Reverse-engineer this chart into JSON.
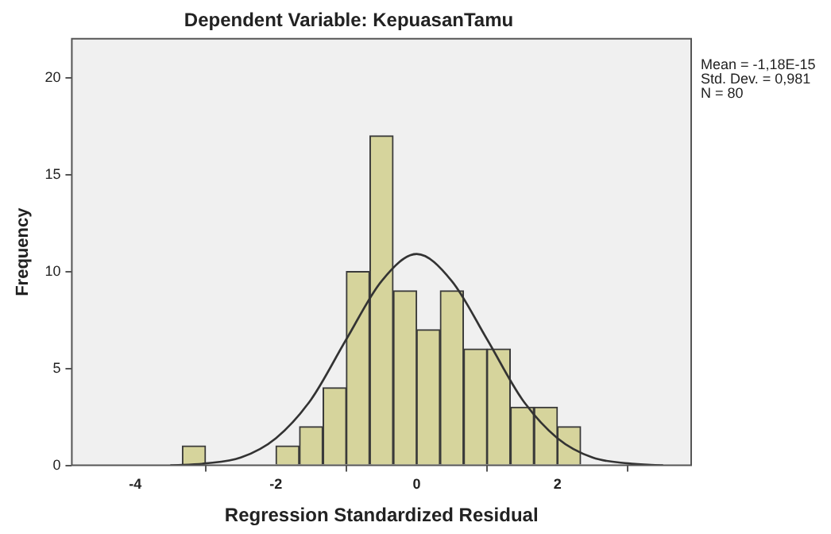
{
  "chart_data": {
    "type": "histogram",
    "title": "Dependent Variable: KepuasanTamu",
    "xlabel": "Regression Standardized Residual",
    "ylabel": "Frequency",
    "bins": [
      -3.33,
      -3,
      -2.67,
      -2.33,
      -2,
      -1.67,
      -1.33,
      -1,
      -0.67,
      -0.33,
      0,
      0.33,
      0.67,
      1,
      1.33,
      1.67,
      2,
      2.33
    ],
    "series": [
      {
        "color": "#d6d49c",
        "values": [
          1,
          0,
          0,
          0,
          1,
          2,
          4,
          10,
          17,
          9,
          7,
          9,
          6,
          6,
          3,
          3,
          2
        ]
      },
      {
        "type": "line",
        "color": "#333333",
        "x": [
          -3.5,
          -3,
          -2.5,
          -2,
          -1.5,
          -1,
          -0.5,
          0,
          0.5,
          1,
          1.5,
          2,
          2.5,
          3,
          3.5
        ],
        "values": [
          0,
          0.1,
          0.4,
          1.4,
          3.4,
          6.5,
          9.5,
          10.9,
          9.5,
          6.5,
          3.4,
          1.4,
          0.4,
          0.1,
          0
        ]
      }
    ],
    "xlim": [
      -4.9,
      3.9
    ],
    "xticks": [
      -4,
      -2,
      0,
      2
    ],
    "ylim": [
      0,
      22
    ],
    "yticks": [
      0,
      5,
      10,
      15,
      20
    ],
    "grid": false,
    "legend": false,
    "annotations": [
      "Mean = -1,18E-15",
      "Std. Dev. = 0,981",
      "N = 80"
    ]
  }
}
